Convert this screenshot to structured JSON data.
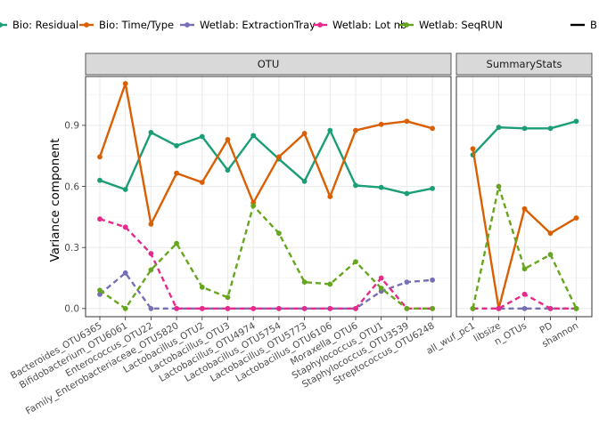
{
  "chart_data": {
    "type": "line",
    "ylabel": "Variance component",
    "ylim": [
      -0.04,
      1.14
    ],
    "yticks": [
      0.0,
      0.3,
      0.6,
      0.9
    ],
    "ytick_labels": [
      "0.0",
      "0.3",
      "0.6",
      "0.9"
    ],
    "grid": true,
    "legend_position": "top",
    "panels": [
      {
        "name": "OTU",
        "categories": [
          "Bacteroides_OTU6365",
          "Bifidobacterium_OTU6061",
          "Enterococcus_OTU22",
          "Family_Enterobacteriaceae_OTU5820",
          "Lactobacillus_OTU2",
          "Lactobacillus_OTU3",
          "Lactobacillus_OTU4974",
          "Lactobacillus_OTU5754",
          "Lactobacillus_OTU5773",
          "Lactobacillus_OTU6106",
          "Moraxella_OTU6",
          "Staphylococcus_OTU1",
          "Staphylococcus_OTU3539",
          "Streptococcus_OTU6248"
        ],
        "series": [
          {
            "name": "Bio: Residual",
            "values": [
              0.63,
              0.585,
              0.865,
              0.8,
              0.845,
              0.68,
              0.85,
              0.735,
              0.625,
              0.875,
              0.605,
              0.595,
              0.565,
              0.59
            ]
          },
          {
            "name": "Bio: Time/Type",
            "values": [
              0.745,
              1.105,
              0.415,
              0.665,
              0.62,
              0.83,
              0.52,
              0.745,
              0.86,
              0.55,
              0.875,
              0.905,
              0.92,
              0.885
            ]
          },
          {
            "name": "Wetlab: ExtractionTray",
            "values": [
              0.07,
              0.175,
              0.0,
              0.0,
              0.0,
              0.0,
              0.0,
              0.0,
              0.0,
              0.0,
              0.0,
              0.085,
              0.13,
              0.14
            ]
          },
          {
            "name": "Wetlab: Lot nb",
            "values": [
              0.44,
              0.4,
              0.27,
              0.0,
              0.0,
              0.0,
              0.0,
              0.0,
              0.0,
              0.0,
              0.0,
              0.15,
              0.0,
              0.0
            ]
          },
          {
            "name": "Wetlab: SeqRUN",
            "values": [
              0.09,
              0.0,
              0.19,
              0.32,
              0.105,
              0.055,
              0.505,
              0.37,
              0.13,
              0.12,
              0.23,
              0.1,
              0.0,
              0.0
            ]
          }
        ]
      },
      {
        "name": "SummaryStats",
        "categories": [
          "all_wuf_pc1",
          "libsize",
          "n_OTUs",
          "PD",
          "shannon"
        ],
        "series": [
          {
            "name": "Bio: Residual",
            "values": [
              0.755,
              0.89,
              0.885,
              0.885,
              0.92
            ]
          },
          {
            "name": "Bio: Time/Type",
            "values": [
              0.785,
              0.0,
              0.49,
              0.37,
              0.445
            ]
          },
          {
            "name": "Wetlab: ExtractionTray",
            "values": [
              0.0,
              0.0,
              0.0,
              0.0,
              0.0
            ]
          },
          {
            "name": "Wetlab: Lot nb",
            "values": [
              0.0,
              0.0,
              0.07,
              0.0,
              0.0
            ]
          },
          {
            "name": "Wetlab: SeqRUN",
            "values": [
              0.0,
              0.6,
              0.195,
              0.265,
              0.0
            ]
          }
        ]
      }
    ],
    "legend": [
      {
        "name": "Bio: Residual",
        "color": "#1b9e77",
        "linetype": "solid"
      },
      {
        "name": "Bio: Time/Type",
        "color": "#d95f02",
        "linetype": "solid"
      },
      {
        "name": "Wetlab: ExtractionTray",
        "color": "#7570b3",
        "linetype": "dashed"
      },
      {
        "name": "Wetlab: Lot nb",
        "color": "#e7298a",
        "linetype": "dashed"
      },
      {
        "name": "Wetlab: SeqRUN",
        "color": "#66a61e",
        "linetype": "dashed"
      },
      {
        "name": "B",
        "color": "#000000",
        "linetype": "solid"
      }
    ]
  }
}
